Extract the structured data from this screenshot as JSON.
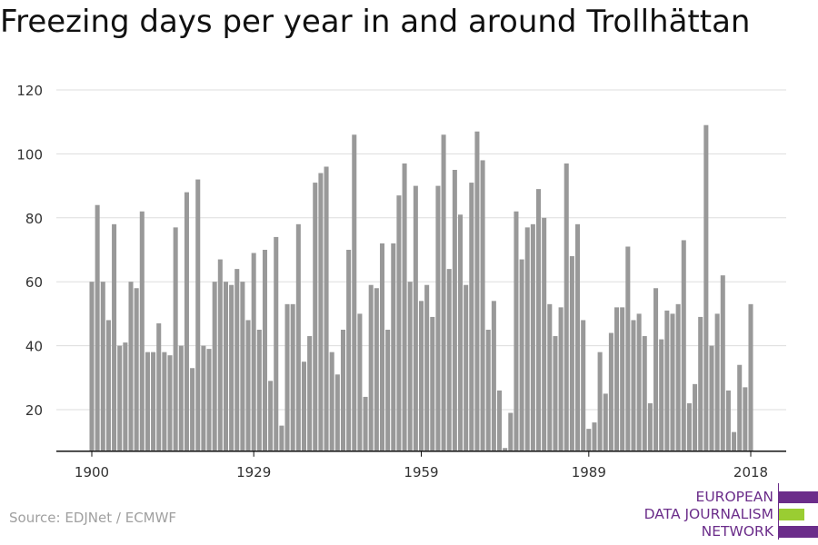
{
  "title": "Freezing days per year in and around Trollhättan",
  "source": "Source: EDJNet / ECMWF",
  "logo": {
    "lines": [
      "EUROPEAN",
      "DATA JOURNALISM",
      "NETWORK"
    ],
    "text_color": "#6b2d8a",
    "bar_colors": [
      "#6b2d8a",
      "#9acd32",
      "#6b2d8a"
    ]
  },
  "chart_data": {
    "type": "bar",
    "title": "Freezing days per year in and around Trollhättan",
    "xlabel": "",
    "ylabel": "",
    "x_tick_labels": [
      "1900",
      "1929",
      "1959",
      "1989",
      "2018"
    ],
    "y_ticks": [
      20,
      40,
      60,
      80,
      100,
      120
    ],
    "ylim": [
      7,
      125
    ],
    "grid": true,
    "bar_color": "#999999",
    "years": [
      1900,
      1901,
      1902,
      1903,
      1904,
      1905,
      1906,
      1907,
      1908,
      1909,
      1910,
      1911,
      1912,
      1913,
      1914,
      1915,
      1916,
      1917,
      1918,
      1919,
      1920,
      1921,
      1922,
      1923,
      1924,
      1925,
      1926,
      1927,
      1928,
      1929,
      1930,
      1931,
      1932,
      1933,
      1934,
      1935,
      1936,
      1937,
      1938,
      1939,
      1940,
      1941,
      1942,
      1943,
      1944,
      1945,
      1946,
      1947,
      1948,
      1949,
      1950,
      1951,
      1952,
      1953,
      1954,
      1955,
      1956,
      1957,
      1958,
      1959,
      1960,
      1961,
      1962,
      1963,
      1964,
      1965,
      1966,
      1967,
      1968,
      1969,
      1970,
      1971,
      1972,
      1973,
      1974,
      1975,
      1976,
      1977,
      1978,
      1979,
      1980,
      1981,
      1982,
      1983,
      1984,
      1985,
      1986,
      1987,
      1988,
      1989,
      1990,
      1991,
      1992,
      1993,
      1994,
      1995,
      1996,
      1997,
      1998,
      1999,
      2000,
      2001,
      2002,
      2003,
      2004,
      2005,
      2006,
      2007,
      2008,
      2009,
      2010,
      2011,
      2012,
      2013,
      2014,
      2015,
      2016,
      2017,
      2018
    ],
    "values": [
      60,
      84,
      60,
      48,
      78,
      40,
      41,
      60,
      58,
      82,
      38,
      38,
      47,
      38,
      37,
      77,
      40,
      88,
      33,
      92,
      40,
      39,
      60,
      67,
      60,
      59,
      64,
      60,
      48,
      69,
      45,
      70,
      29,
      74,
      15,
      53,
      53,
      78,
      35,
      43,
      91,
      94,
      96,
      38,
      31,
      45,
      70,
      106,
      50,
      24,
      59,
      58,
      72,
      45,
      72,
      87,
      97,
      60,
      90,
      54,
      59,
      49,
      90,
      106,
      64,
      95,
      81,
      59,
      91,
      107,
      98,
      45,
      54,
      26,
      8,
      19,
      82,
      67,
      77,
      78,
      89,
      80,
      53,
      43,
      52,
      97,
      68,
      78,
      48,
      14,
      16,
      38,
      25,
      44,
      52,
      52,
      71,
      48,
      50,
      43,
      22,
      58,
      42,
      51,
      50,
      53,
      73,
      22,
      28,
      49,
      109,
      40,
      50,
      62,
      26,
      13,
      34,
      27,
      53
    ]
  }
}
